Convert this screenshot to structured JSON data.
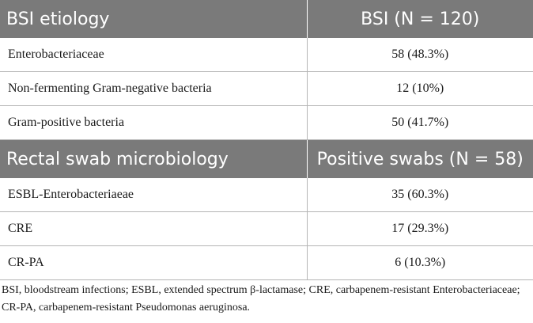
{
  "section1": {
    "header_left": "BSI etiology",
    "header_right": "BSI (N = 120)",
    "rows": [
      {
        "label": "Enterobacteriaceae",
        "value": "58 (48.3%)"
      },
      {
        "label": "Non-fermenting Gram-negative bacteria",
        "value": "12 (10%)"
      },
      {
        "label": "Gram-positive bacteria",
        "value": "50 (41.7%)"
      }
    ]
  },
  "section2": {
    "header_left": "Rectal swab microbiology",
    "header_right": "Positive swabs (N = 58)",
    "rows": [
      {
        "label": "ESBL-Enterobacteriaeae",
        "value": "35 (60.3%)"
      },
      {
        "label": "CRE",
        "value": "17 (29.3%)"
      },
      {
        "label": "CR-PA",
        "value": "6 (10.3%)"
      }
    ]
  },
  "footnote": "BSI, bloodstream infections; ESBL, extended spectrum β-lactamase; CRE, carbapenem-resistant Enterobacteriaceae; CR-PA, carbapenem-resistant Pseudomonas aeruginosa."
}
